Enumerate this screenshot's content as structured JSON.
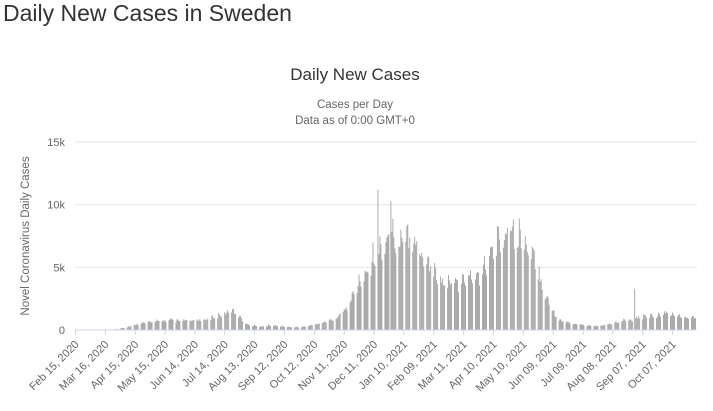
{
  "page": {
    "title": "Daily New Cases in Sweden"
  },
  "chart_data": {
    "type": "bar",
    "title": "Daily New Cases",
    "subtitle": [
      "Cases per Day",
      "Data as of 0:00 GMT+0"
    ],
    "xlabel": "",
    "ylabel": "Novel Coronavirus Daily Cases",
    "ylim": [
      0,
      15000
    ],
    "yticks": [
      0,
      5000,
      10000,
      15000
    ],
    "ytick_labels": [
      "0",
      "5k",
      "10k",
      "15k"
    ],
    "x_start": "2020-02-15",
    "x_end": "2021-10-31",
    "xtick_labels": [
      "Feb 15, 2020",
      "Mar 16, 2020",
      "Apr 15, 2020",
      "May 15, 2020",
      "Jun 14, 2020",
      "Jul 14, 2020",
      "Aug 13, 2020",
      "Sep 12, 2020",
      "Oct 12, 2020",
      "Nov 11, 2020",
      "Dec 11, 2020",
      "Jan 10, 2021",
      "Feb 09, 2021",
      "Mar 11, 2021",
      "Apr 10, 2021",
      "May 10, 2021",
      "Jun 09, 2021",
      "Jul 09, 2021",
      "Aug 08, 2021",
      "Sep 07, 2021",
      "Oct 07, 2021"
    ],
    "grid": true,
    "bar_color": "#999999",
    "series": [
      {
        "values": [
          0,
          0,
          0,
          0,
          0,
          5,
          40,
          120,
          220,
          360,
          470,
          540,
          610,
          650,
          690,
          720,
          650,
          700,
          680,
          750,
          760,
          870,
          1050,
          1250,
          1450,
          1250,
          600,
          360,
          290,
          260,
          330,
          300,
          260,
          230,
          200,
          220,
          290,
          400,
          520,
          650,
          800,
          1200,
          1700,
          2700,
          3500,
          4500,
          5300,
          5800,
          6400,
          7100,
          6300,
          6500,
          7200,
          6200,
          5200,
          4700,
          4000,
          3700,
          3400,
          3200,
          3700,
          4100,
          3900,
          4400,
          5300,
          6300,
          7200,
          7700,
          7300,
          6600,
          5900,
          5000,
          3600,
          2200,
          1200,
          700,
          550,
          450,
          380,
          330,
          290,
          300,
          380,
          480,
          570,
          690,
          760,
          880,
          990,
          1050,
          1000,
          1250,
          1150,
          1050,
          920,
          870,
          830
        ]
      }
    ],
    "annotations": [
      {
        "date": "2020-12-15",
        "value": 11200
      },
      {
        "date": "2020-12-28",
        "value": 10300
      },
      {
        "date": "2021-08-30",
        "value": 3300
      }
    ]
  }
}
